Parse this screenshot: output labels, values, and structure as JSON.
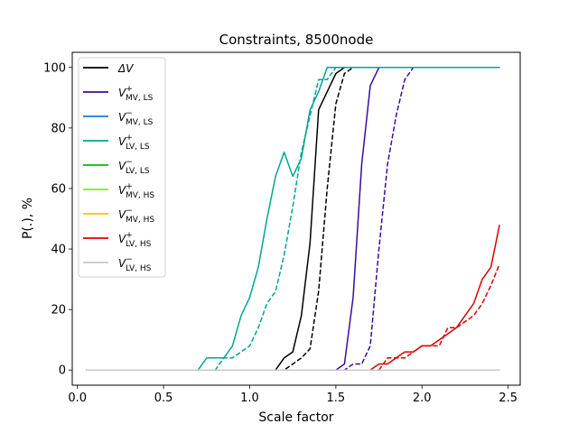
{
  "chart_data": {
    "type": "line",
    "title": "Constraints, 8500node",
    "xlabel": "Scale factor",
    "ylabel": "P(.), %",
    "xlim": [
      -0.03,
      2.57
    ],
    "ylim": [
      -5,
      105
    ],
    "xticks": [
      0.0,
      0.5,
      1.0,
      1.5,
      2.0,
      2.5
    ],
    "xtick_labels": [
      "0.0",
      "0.5",
      "1.0",
      "1.5",
      "2.0",
      "2.5"
    ],
    "yticks": [
      0,
      20,
      40,
      60,
      80,
      100
    ],
    "ytick_labels": [
      "0",
      "20",
      "40",
      "60",
      "80",
      "100"
    ],
    "grid": false,
    "legend_position": "upper-left",
    "x": [
      0.05,
      0.1,
      0.15,
      0.2,
      0.25,
      0.3,
      0.35,
      0.4,
      0.45,
      0.5,
      0.55,
      0.6,
      0.65,
      0.7,
      0.75,
      0.8,
      0.85,
      0.9,
      0.95,
      1.0,
      1.05,
      1.1,
      1.15,
      1.2,
      1.25,
      1.3,
      1.35,
      1.4,
      1.45,
      1.5,
      1.55,
      1.6,
      1.65,
      1.7,
      1.75,
      1.8,
      1.85,
      1.9,
      1.95,
      2.0,
      2.05,
      2.1,
      2.15,
      2.2,
      2.25,
      2.3,
      2.35,
      2.4,
      2.45
    ],
    "series": [
      {
        "name": "ΔV",
        "color": "#000000",
        "style": "solid",
        "values": [
          0,
          0,
          0,
          0,
          0,
          0,
          0,
          0,
          0,
          0,
          0,
          0,
          0,
          0,
          0,
          0,
          0,
          0,
          0,
          0,
          0,
          0,
          0,
          4,
          6,
          18,
          42,
          86,
          92,
          98,
          100,
          100,
          100,
          100,
          100,
          100,
          100,
          100,
          100,
          100,
          100,
          100,
          100,
          100,
          100,
          100,
          100,
          100,
          100
        ]
      },
      {
        "name": "ΔV",
        "color": "#000000",
        "style": "dashed",
        "values": [
          0,
          0,
          0,
          0,
          0,
          0,
          0,
          0,
          0,
          0,
          0,
          0,
          0,
          0,
          0,
          0,
          0,
          0,
          0,
          0,
          0,
          0,
          0,
          0,
          2,
          4,
          7,
          26,
          60,
          88,
          98,
          100,
          100,
          100,
          100,
          100,
          100,
          100,
          100,
          100,
          100,
          100,
          100,
          100,
          100,
          100,
          100,
          100,
          100
        ]
      },
      {
        "name": "V+ MV,LS",
        "color": "#3a0ca3",
        "style": "solid",
        "values": [
          0,
          0,
          0,
          0,
          0,
          0,
          0,
          0,
          0,
          0,
          0,
          0,
          0,
          0,
          0,
          0,
          0,
          0,
          0,
          0,
          0,
          0,
          0,
          0,
          0,
          0,
          0,
          0,
          0,
          0,
          2,
          24,
          68,
          94,
          100,
          100,
          100,
          100,
          100,
          100,
          100,
          100,
          100,
          100,
          100,
          100,
          100,
          100,
          100
        ]
      },
      {
        "name": "V+ MV,LS",
        "color": "#3a0ca3",
        "style": "dashed",
        "values": [
          0,
          0,
          0,
          0,
          0,
          0,
          0,
          0,
          0,
          0,
          0,
          0,
          0,
          0,
          0,
          0,
          0,
          0,
          0,
          0,
          0,
          0,
          0,
          0,
          0,
          0,
          0,
          0,
          0,
          0,
          0,
          2,
          2,
          8,
          40,
          68,
          84,
          96,
          100,
          100,
          100,
          100,
          100,
          100,
          100,
          100,
          100,
          100,
          100
        ]
      },
      {
        "name": "V- MV,LS",
        "color": "#1f77d4",
        "style": "solid",
        "values": [
          0,
          0,
          0,
          0,
          0,
          0,
          0,
          0,
          0,
          0,
          0,
          0,
          0,
          0,
          0,
          0,
          0,
          0,
          0,
          0,
          0,
          0,
          0,
          0,
          0,
          0,
          0,
          0,
          0,
          0,
          0,
          0,
          0,
          0,
          0,
          0,
          0,
          0,
          0,
          0,
          0,
          0,
          0,
          0,
          0,
          0,
          0,
          0,
          0
        ]
      },
      {
        "name": "V+ LV,LS",
        "color": "#00a693",
        "style": "solid",
        "values": [
          0,
          0,
          0,
          0,
          0,
          0,
          0,
          0,
          0,
          0,
          0,
          0,
          0,
          0,
          4,
          4,
          4,
          8,
          18,
          24,
          34,
          50,
          64,
          72,
          64,
          70,
          86,
          92,
          100,
          100,
          100,
          100,
          100,
          100,
          100,
          100,
          100,
          100,
          100,
          100,
          100,
          100,
          100,
          100,
          100,
          100,
          100,
          100,
          100
        ]
      },
      {
        "name": "V+ LV,LS",
        "color": "#00a693",
        "style": "dashed",
        "values": [
          0,
          0,
          0,
          0,
          0,
          0,
          0,
          0,
          0,
          0,
          0,
          0,
          0,
          0,
          0,
          0,
          4,
          4,
          6,
          8,
          14,
          22,
          26,
          38,
          54,
          72,
          84,
          96,
          96,
          100,
          100,
          100,
          100,
          100,
          100,
          100,
          100,
          100,
          100,
          100,
          100,
          100,
          100,
          100,
          100,
          100,
          100,
          100,
          100
        ]
      },
      {
        "name": "V- LV,LS",
        "color": "#00bb00",
        "style": "solid",
        "values": [
          0,
          0,
          0,
          0,
          0,
          0,
          0,
          0,
          0,
          0,
          0,
          0,
          0,
          0,
          0,
          0,
          0,
          0,
          0,
          0,
          0,
          0,
          0,
          0,
          0,
          0,
          0,
          0,
          0,
          0,
          0,
          0,
          0,
          0,
          0,
          0,
          0,
          0,
          0,
          0,
          0,
          0,
          0,
          0,
          0,
          0,
          0,
          0,
          0
        ]
      },
      {
        "name": "V+ MV,HS",
        "color": "#7ff000",
        "style": "solid",
        "values": [
          0,
          0,
          0,
          0,
          0,
          0,
          0,
          0,
          0,
          0,
          0,
          0,
          0,
          0,
          0,
          0,
          0,
          0,
          0,
          0,
          0,
          0,
          0,
          0,
          0,
          0,
          0,
          0,
          0,
          0,
          0,
          0,
          0,
          0,
          0,
          0,
          0,
          0,
          0,
          0,
          0,
          0,
          0,
          0,
          0,
          0,
          0,
          0,
          0
        ]
      },
      {
        "name": "V- MV,HS",
        "color": "#f5c400",
        "style": "solid",
        "values": [
          0,
          0,
          0,
          0,
          0,
          0,
          0,
          0,
          0,
          0,
          0,
          0,
          0,
          0,
          0,
          0,
          0,
          0,
          0,
          0,
          0,
          0,
          0,
          0,
          0,
          0,
          0,
          0,
          0,
          0,
          0,
          0,
          0,
          0,
          0,
          0,
          0,
          0,
          0,
          0,
          0,
          0,
          0,
          0,
          0,
          0,
          0,
          0,
          0
        ]
      },
      {
        "name": "V+ LV,HS",
        "color": "#dd0000",
        "style": "solid",
        "values": [
          0,
          0,
          0,
          0,
          0,
          0,
          0,
          0,
          0,
          0,
          0,
          0,
          0,
          0,
          0,
          0,
          0,
          0,
          0,
          0,
          0,
          0,
          0,
          0,
          0,
          0,
          0,
          0,
          0,
          0,
          0,
          0,
          0,
          0,
          2,
          2,
          4,
          6,
          6,
          8,
          8,
          10,
          12,
          14,
          18,
          22,
          30,
          34,
          48
        ]
      },
      {
        "name": "V+ LV,HS",
        "color": "#dd0000",
        "style": "dashed",
        "values": [
          0,
          0,
          0,
          0,
          0,
          0,
          0,
          0,
          0,
          0,
          0,
          0,
          0,
          0,
          0,
          0,
          0,
          0,
          0,
          0,
          0,
          0,
          0,
          0,
          0,
          0,
          0,
          0,
          0,
          0,
          0,
          0,
          0,
          0,
          0,
          4,
          4,
          4,
          6,
          8,
          8,
          8,
          14,
          14,
          16,
          18,
          22,
          28,
          35
        ]
      },
      {
        "name": "V- LV,HS",
        "color": "#c8c8c8",
        "style": "solid",
        "values": [
          0,
          0,
          0,
          0,
          0,
          0,
          0,
          0,
          0,
          0,
          0,
          0,
          0,
          0,
          0,
          0,
          0,
          0,
          0,
          0,
          0,
          0,
          0,
          0,
          0,
          0,
          0,
          0,
          0,
          0,
          0,
          0,
          0,
          0,
          0,
          0,
          0,
          0,
          0,
          0,
          0,
          0,
          0,
          0,
          0,
          0,
          0,
          0,
          0
        ]
      },
      {
        "name": "V- LV,HS",
        "color": "#c8c8c8",
        "style": "dashed",
        "values": [
          0,
          0,
          0,
          0,
          0,
          0,
          0,
          0,
          0,
          0,
          0,
          0,
          0,
          0,
          0,
          0,
          0,
          0,
          0,
          0,
          0,
          0,
          0,
          0,
          0,
          0,
          0,
          0,
          0,
          0,
          0,
          0,
          0,
          0,
          0,
          0,
          0,
          0,
          0,
          0,
          0,
          0,
          0,
          0,
          0,
          0,
          0,
          0,
          0
        ]
      }
    ],
    "legend": [
      {
        "label": "ΔV",
        "main": "ΔV",
        "sup": "",
        "sub": "",
        "color": "#000000"
      },
      {
        "label": "V+ MV,LS",
        "main": "V",
        "sup": "+",
        "sub": "MV, LS",
        "color": "#3a0ca3"
      },
      {
        "label": "V- MV,LS",
        "main": "V",
        "sup": "−",
        "sub": "MV, LS",
        "color": "#1f77d4"
      },
      {
        "label": "V+ LV,LS",
        "main": "V",
        "sup": "+",
        "sub": "LV, LS",
        "color": "#00a693"
      },
      {
        "label": "V- LV,LS",
        "main": "V",
        "sup": "−",
        "sub": "LV, LS",
        "color": "#00bb00"
      },
      {
        "label": "V+ MV,HS",
        "main": "V",
        "sup": "+",
        "sub": "MV, HS",
        "color": "#7ff000"
      },
      {
        "label": "V- MV,HS",
        "main": "V",
        "sup": "−",
        "sub": "MV, HS",
        "color": "#f5c400"
      },
      {
        "label": "V+ LV,HS",
        "main": "V",
        "sup": "+",
        "sub": "LV, HS",
        "color": "#dd0000"
      },
      {
        "label": "V- LV,HS",
        "main": "V",
        "sup": "−",
        "sub": "LV, HS",
        "color": "#c8c8c8"
      }
    ]
  }
}
